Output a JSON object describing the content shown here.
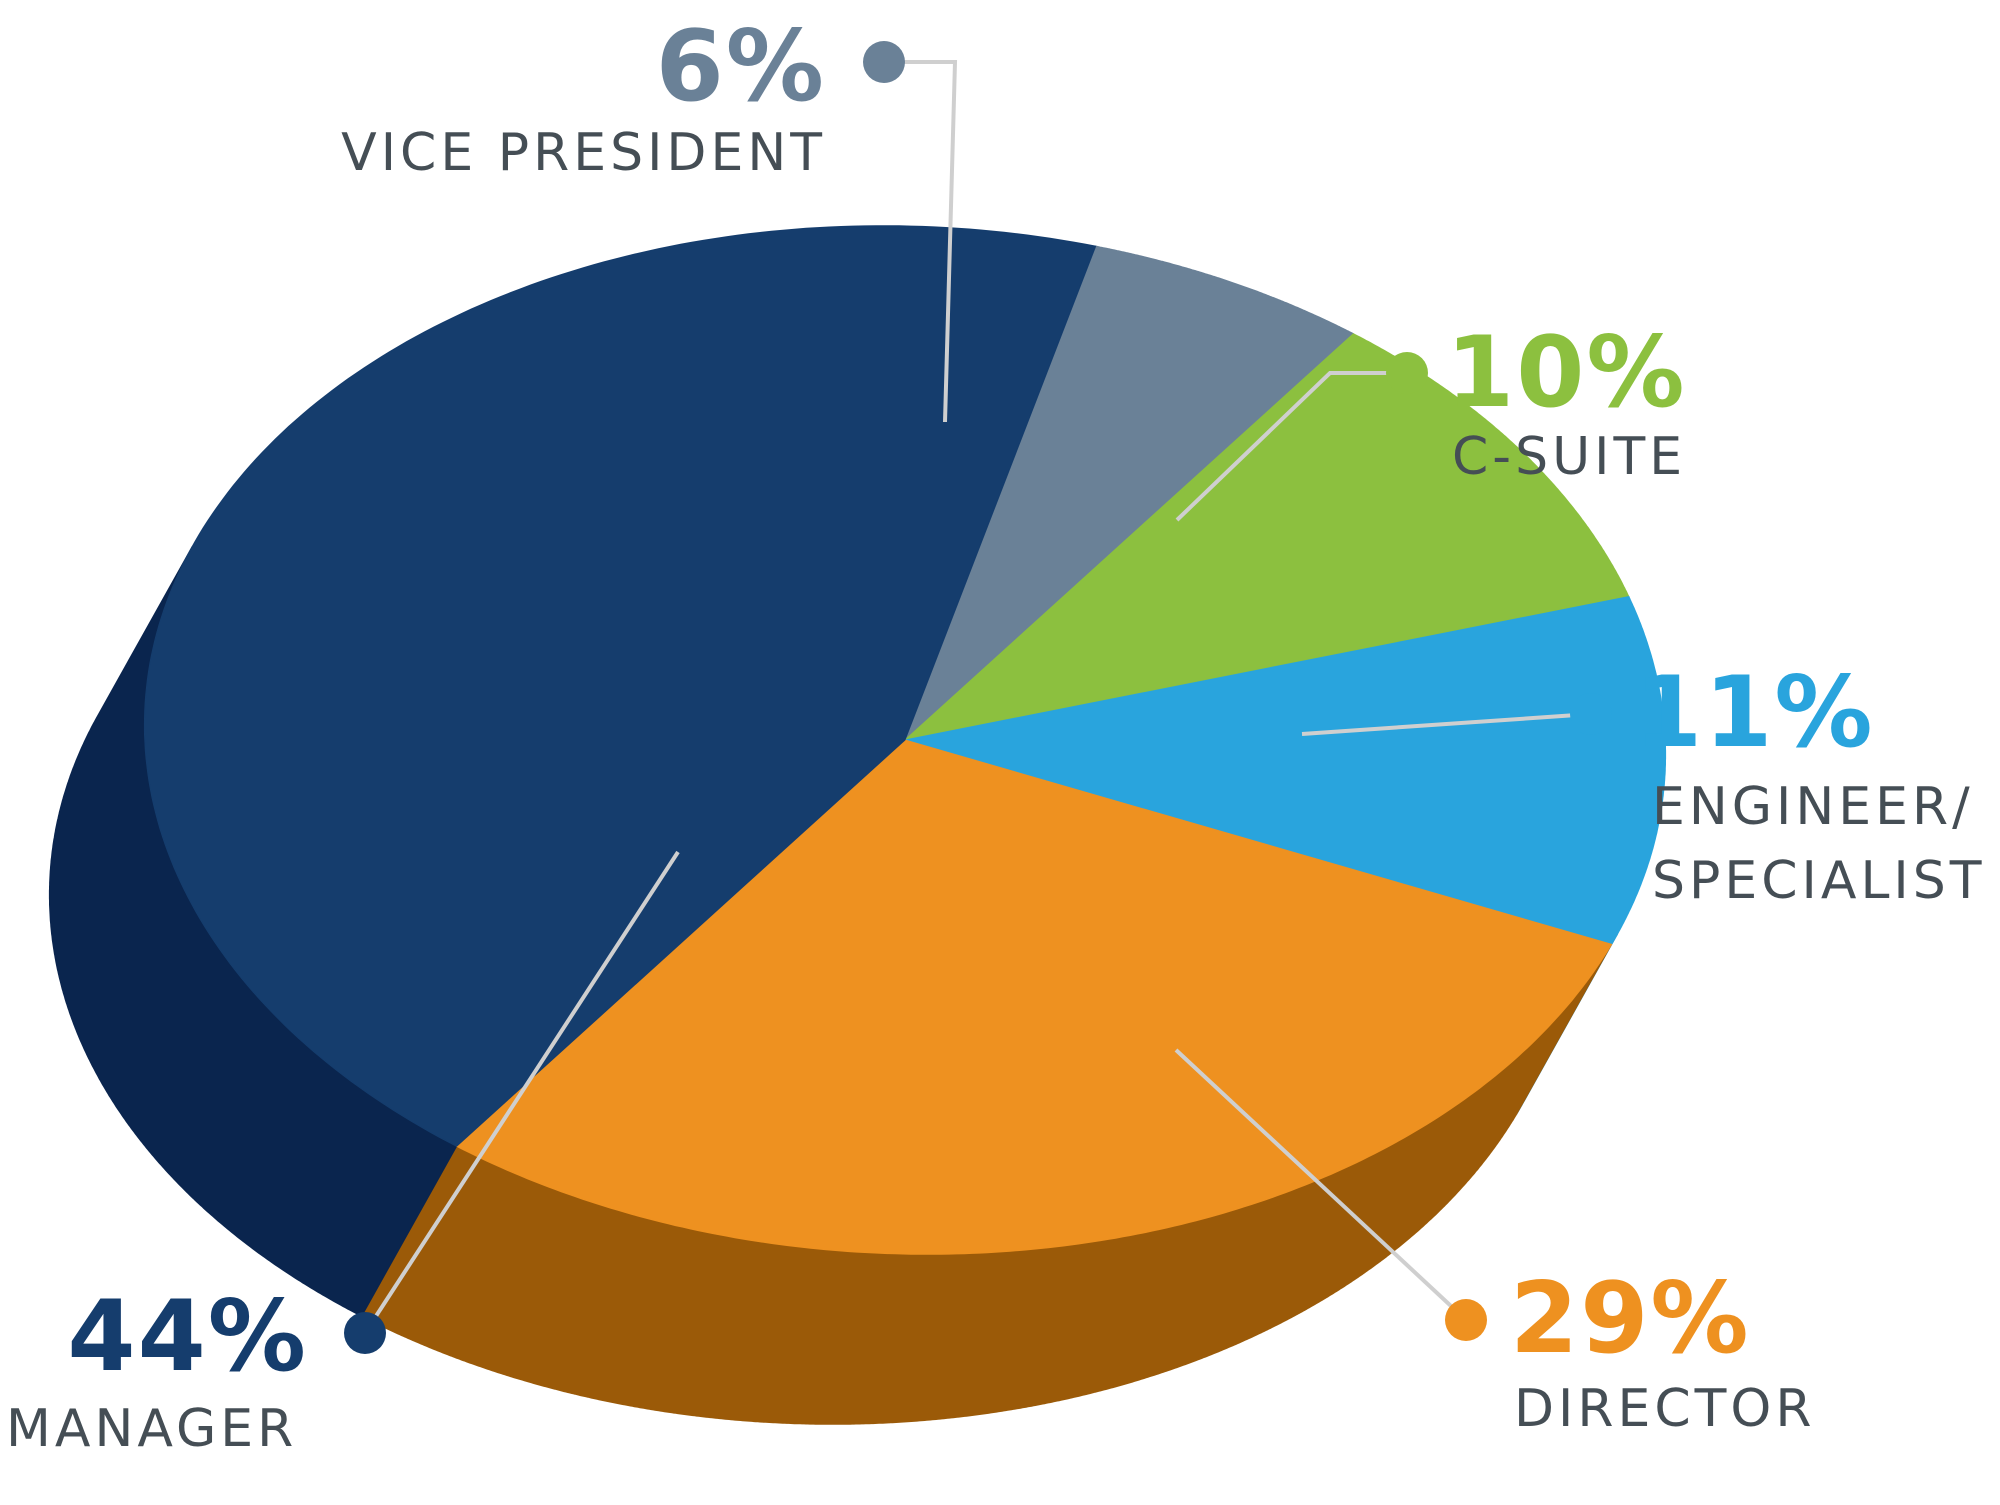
{
  "chart_data": {
    "type": "pie",
    "title": "",
    "slices": [
      {
        "label": "VICE PRESIDENT",
        "label_lines": [
          "VICE PRESIDENT"
        ],
        "value": 6,
        "value_text": "6%",
        "color": "#6a8197",
        "side_color": "#4f6275"
      },
      {
        "label": "C-SUITE",
        "label_lines": [
          "C-SUITE"
        ],
        "value": 10,
        "value_text": "10%",
        "color": "#8cc03f",
        "side_color": "#679430"
      },
      {
        "label": "ENGINEER/ SPECIALIST",
        "label_lines": [
          "ENGINEER/",
          "SPECIALIST"
        ],
        "value": 11,
        "value_text": "11%",
        "color": "#29a4dd",
        "side_color": "#1d7aa6"
      },
      {
        "label": "DIRECTOR",
        "label_lines": [
          "DIRECTOR"
        ],
        "value": 29,
        "value_text": "29%",
        "color": "#ee9120",
        "side_color": "#9b5a08"
      },
      {
        "label": "MANAGER",
        "label_lines": [
          "MANAGER"
        ],
        "value": 44,
        "value_text": "44%",
        "color": "#153d6d",
        "side_color": "#0a254e"
      }
    ],
    "legend": "callouts",
    "style": "3d-tilted-pie",
    "leader_line_color": "#cfcfcf"
  }
}
